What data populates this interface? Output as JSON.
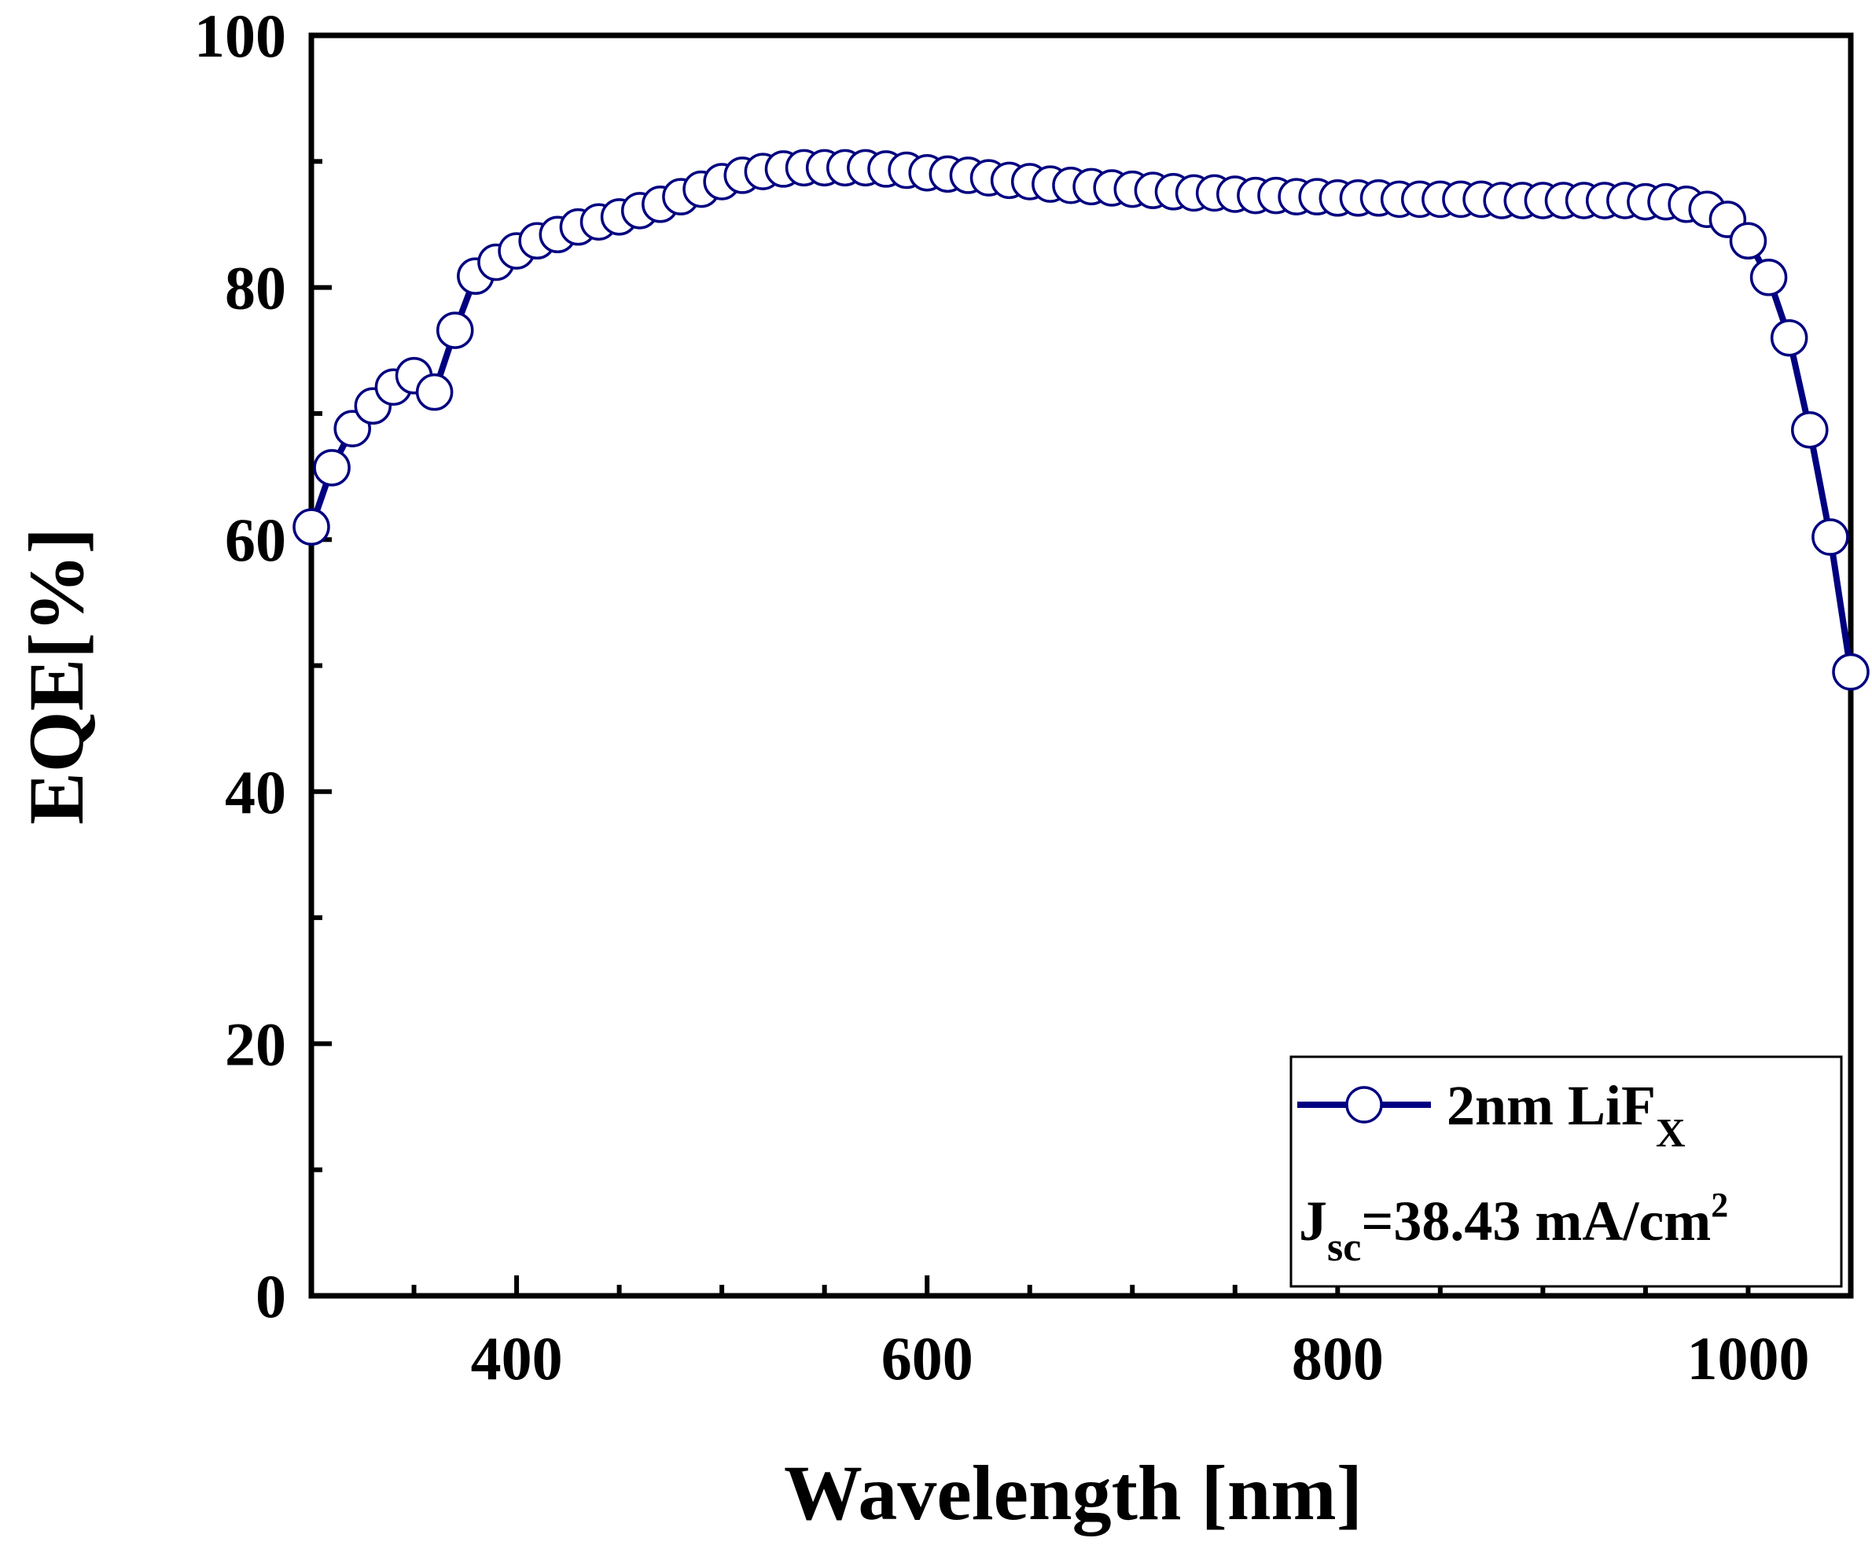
{
  "chart_data": {
    "type": "line",
    "title": "",
    "xlabel": "Wavelength [nm]",
    "ylabel": "EQE[%]",
    "xlim": [
      300,
      1050
    ],
    "ylim": [
      0,
      100
    ],
    "xticks": [
      400,
      600,
      800,
      1000
    ],
    "yticks": [
      0,
      20,
      40,
      60,
      80,
      100
    ],
    "x_tick_labels": [
      "400",
      "600",
      "800",
      "1000"
    ],
    "y_tick_labels": [
      "0",
      "20",
      "40",
      "60",
      "80",
      "100"
    ],
    "grid": false,
    "legend_position": "bottom-right",
    "line_color": "#000080",
    "marker": "open-circle",
    "series": [
      {
        "name": "2nm LiFx",
        "legend_main": "2nm LiF",
        "legend_sub": "X",
        "x": [
          300,
          310,
          320,
          330,
          340,
          350,
          360,
          370,
          380,
          390,
          400,
          410,
          420,
          430,
          440,
          450,
          460,
          470,
          480,
          490,
          500,
          510,
          520,
          530,
          540,
          550,
          560,
          570,
          580,
          590,
          600,
          610,
          620,
          630,
          640,
          650,
          660,
          670,
          680,
          690,
          700,
          710,
          720,
          730,
          740,
          750,
          760,
          770,
          780,
          790,
          800,
          810,
          820,
          830,
          840,
          850,
          860,
          870,
          880,
          890,
          900,
          910,
          920,
          930,
          940,
          950,
          960,
          970,
          980,
          990,
          1000,
          1010,
          1020,
          1030,
          1040,
          1050
        ],
        "y": [
          61.0,
          65.7,
          68.8,
          70.6,
          72.1,
          73.0,
          71.7,
          76.6,
          80.9,
          82.0,
          82.9,
          83.7,
          84.2,
          84.8,
          85.2,
          85.6,
          86.1,
          86.6,
          87.2,
          87.8,
          88.4,
          88.9,
          89.2,
          89.4,
          89.5,
          89.5,
          89.5,
          89.5,
          89.4,
          89.3,
          89.1,
          89.0,
          88.9,
          88.7,
          88.5,
          88.4,
          88.2,
          88.1,
          88.0,
          87.9,
          87.8,
          87.7,
          87.6,
          87.5,
          87.5,
          87.4,
          87.3,
          87.3,
          87.2,
          87.2,
          87.1,
          87.1,
          87.1,
          87.0,
          87.0,
          87.0,
          87.0,
          87.0,
          86.9,
          86.9,
          86.9,
          86.9,
          86.9,
          86.9,
          86.9,
          86.8,
          86.8,
          86.6,
          86.2,
          85.4,
          83.7,
          80.8,
          76.0,
          68.7,
          60.2,
          49.5
        ]
      }
    ],
    "annotations": [
      {
        "text_main": "J",
        "text_sub": "sc",
        "text_rest": "=38.43 mA/cm",
        "text_sup": "2"
      }
    ]
  }
}
